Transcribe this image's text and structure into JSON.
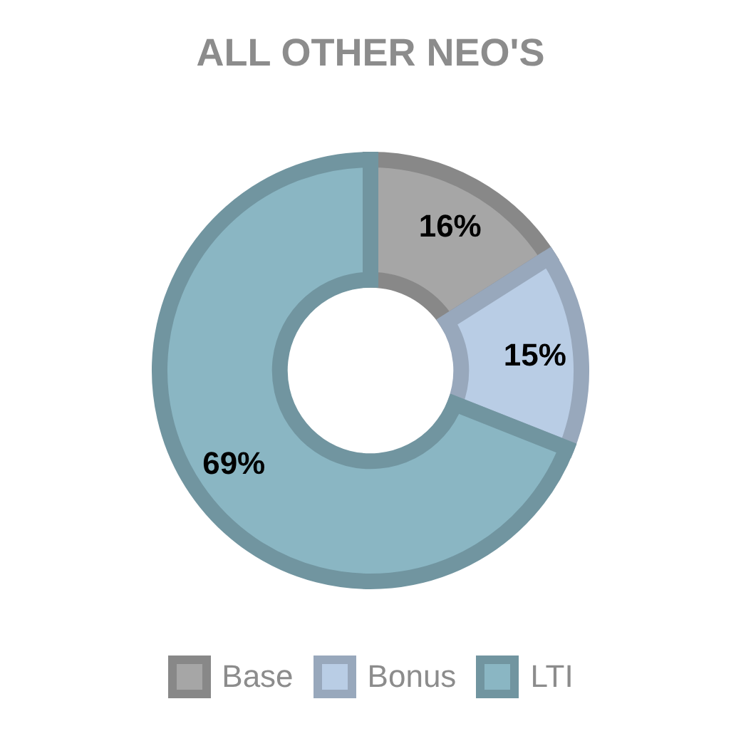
{
  "chart_data": {
    "type": "donut",
    "title": "ALL OTHER NEO'S",
    "categories": [
      "Base",
      "Bonus",
      "LTI"
    ],
    "values": [
      16,
      15,
      69
    ],
    "colors": [
      "#a6a6a6",
      "#b9cde5",
      "#8ab6c3"
    ],
    "value_labels": [
      "16%",
      "15%",
      "69%"
    ],
    "legend": "bottom"
  }
}
